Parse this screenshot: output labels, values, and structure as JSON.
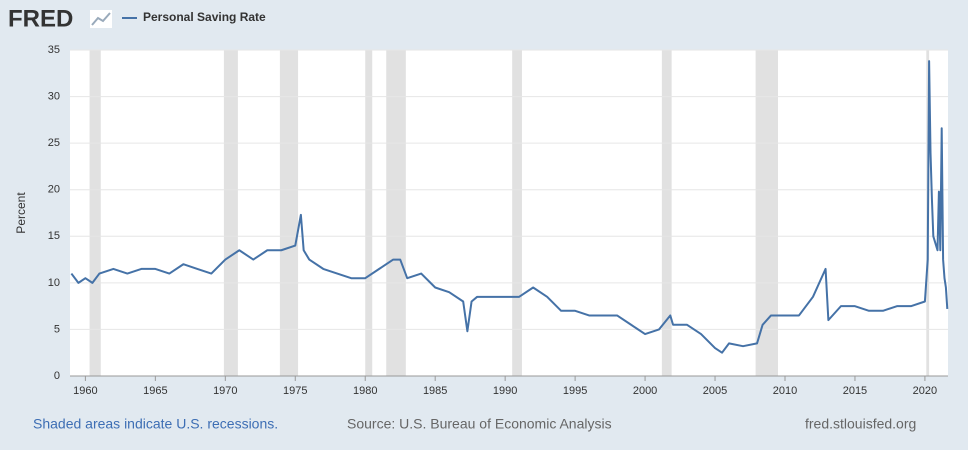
{
  "chart_data": {
    "type": "line",
    "logo": "FRED",
    "title": "Personal Saving Rate",
    "ylabel": "Percent",
    "recession_note": "Shaded areas indicate U.S. recessions.",
    "source": "Source: U.S. Bureau of Economic Analysis",
    "site": "fred.stlouisfed.org",
    "xlim": [
      1958.9,
      2021.65
    ],
    "ylim": [
      0,
      35
    ],
    "xticks": [
      1960,
      1965,
      1970,
      1975,
      1980,
      1985,
      1990,
      1995,
      2000,
      2005,
      2010,
      2015,
      2020
    ],
    "yticks": [
      0,
      5,
      10,
      15,
      20,
      25,
      30,
      35
    ],
    "grid": true,
    "recession_color": "#e1e1e1",
    "recessions": [
      [
        1960.3,
        1961.1
      ],
      [
        1969.9,
        1970.9
      ],
      [
        1973.9,
        1975.2
      ],
      [
        1980.0,
        1980.5
      ],
      [
        1981.5,
        1982.9
      ],
      [
        1990.5,
        1991.2
      ],
      [
        2001.2,
        2001.9
      ],
      [
        2007.9,
        2009.5
      ],
      [
        2020.1,
        2020.3
      ]
    ],
    "x": [
      1959,
      1959.5,
      1960,
      1960.5,
      1961,
      1962,
      1963,
      1964,
      1965,
      1966,
      1967,
      1968,
      1969,
      1970,
      1971,
      1972,
      1973,
      1974,
      1975,
      1975.4,
      1975.6,
      1976,
      1977,
      1978,
      1979,
      1980,
      1981,
      1982,
      1982.5,
      1983,
      1984,
      1985,
      1986,
      1987,
      1987.3,
      1987.6,
      1988,
      1989,
      1990,
      1991,
      1992,
      1993,
      1994,
      1995,
      1996,
      1997,
      1998,
      1999,
      2000,
      2001,
      2001.8,
      2002,
      2003,
      2004,
      2005,
      2005.5,
      2006,
      2007,
      2008,
      2008.4,
      2009,
      2010,
      2011,
      2012,
      2012.9,
      2013.1,
      2014,
      2015,
      2016,
      2017,
      2018,
      2019,
      2020,
      2020.2,
      2020.3,
      2020.4,
      2020.5,
      2020.6,
      2020.8,
      2020.9,
      2021.0,
      2021.1,
      2021.2,
      2021.3,
      2021.4,
      2021.5,
      2021.6
    ],
    "series": [
      {
        "name": "Personal Saving Rate",
        "color": "#4572a7",
        "values": [
          11,
          10,
          10.5,
          10,
          11,
          11.5,
          11,
          11.5,
          11.5,
          11,
          12,
          11.5,
          11,
          12.5,
          13.5,
          12.5,
          13.5,
          13.5,
          14,
          17.3,
          13.5,
          12.5,
          11.5,
          11,
          10.5,
          10.5,
          11.5,
          12.5,
          12.5,
          10.5,
          11,
          9.5,
          9,
          8,
          4.8,
          8,
          8.5,
          8.5,
          8.5,
          8.5,
          9.5,
          8.5,
          7,
          7,
          6.5,
          6.5,
          6.5,
          5.5,
          4.5,
          5,
          6.5,
          5.5,
          5.5,
          4.5,
          3,
          2.5,
          3.5,
          3.2,
          3.5,
          5.5,
          6.5,
          6.5,
          6.5,
          8.5,
          11.5,
          6,
          7.5,
          7.5,
          7,
          7,
          7.5,
          7.5,
          8,
          12.5,
          33.8,
          24,
          19,
          15,
          14,
          13.5,
          19.8,
          13.5,
          26.6,
          12.5,
          10.5,
          9.5,
          7.2
        ]
      }
    ]
  }
}
